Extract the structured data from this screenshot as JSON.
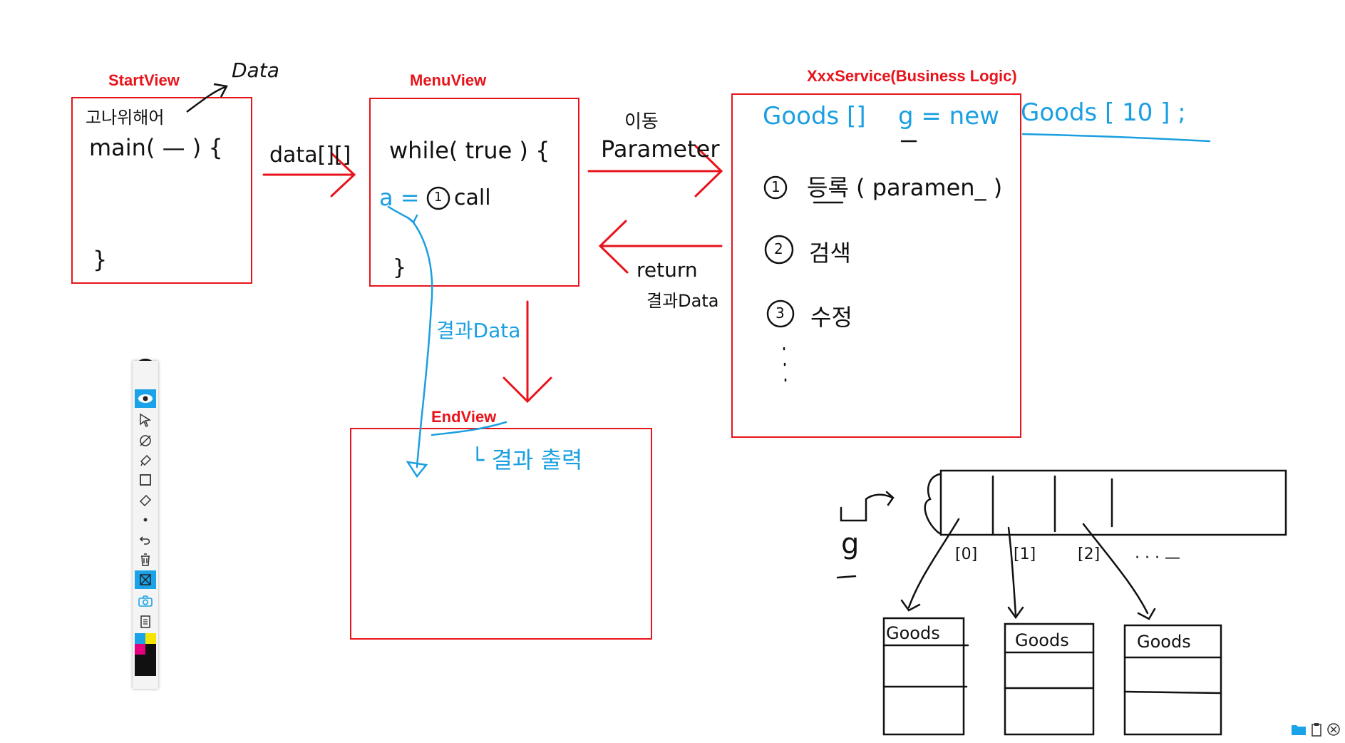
{
  "labels": {
    "start_view": "StartView",
    "menu_view": "MenuView",
    "service": "XxxService(Business Logic)",
    "end_view": "EndView"
  },
  "notes": {
    "data_top": "Data",
    "start_korean": "고나위해어",
    "main_call": "main( — ) {",
    "close_brace": "}",
    "data_arrow": "data[][]",
    "while_true": "while( true ) {",
    "a_eq": "a =",
    "call": "call",
    "param_korean": "이동",
    "parameter": "Parameter",
    "return": "return",
    "result_data_return": "결과Data",
    "result_data_down": "결과Data",
    "result_output": "└ 결과 출력",
    "goods_decl_1": "Goods []",
    "goods_decl_2": "g = new",
    "goods_decl_3": "Goods [ 10 ] ;",
    "item_1_num": "1",
    "item_1_text": "등록 ( paramen_ )",
    "item_2_num": "2",
    "item_2_text": "검색",
    "item_3_num": "3",
    "item_3_text": "수정",
    "g_var": "g",
    "idx_0": "[0]",
    "idx_1": "[1]",
    "idx_2": "[2]",
    "ellipsis": "· · · —",
    "goods_obj_1": "Goods",
    "goods_obj_2": "Goods",
    "goods_obj_3": "Goods"
  },
  "toolbar": {
    "tools": [
      "pen-icon",
      "eye-icon",
      "pointer-icon",
      "timer-pen-icon",
      "highlighter-icon",
      "rectangle-icon",
      "eraser-icon",
      "dot-icon",
      "undo-icon",
      "trash-icon",
      "clear-screen-icon",
      "camera-icon",
      "clipboard-icon"
    ],
    "colors": [
      "#1aa3e8",
      "#f5e400",
      "#e6007e",
      "#111111"
    ]
  },
  "colors": {
    "box_red": "#e8141c",
    "ink_black": "#111111",
    "ink_blue": "#1a9fe0"
  }
}
